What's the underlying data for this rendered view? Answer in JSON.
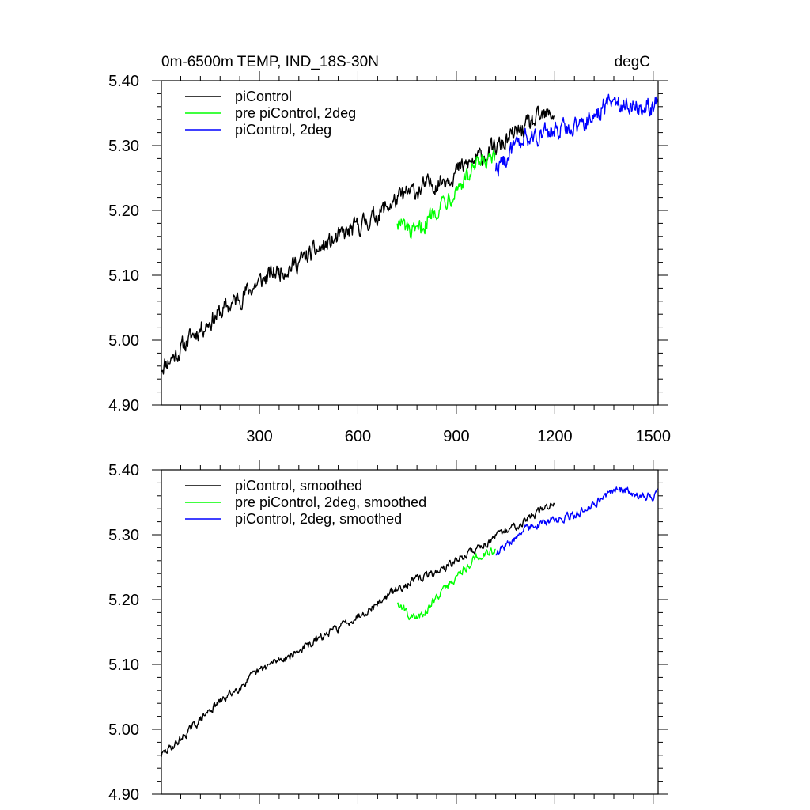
{
  "chart_data": [
    {
      "type": "line",
      "title": "0m-6500m TEMP, IND_18S-30N",
      "units": "degC",
      "xlabel": "",
      "ylabel": "",
      "xlim": [
        1,
        1515
      ],
      "ylim": [
        4.9,
        5.4
      ],
      "xticks": [
        300,
        600,
        900,
        1200,
        1500
      ],
      "xtick_labels": [
        "300",
        "600",
        "900",
        "1200",
        "1500"
      ],
      "yticks": [
        4.9,
        5.0,
        5.1,
        5.2,
        5.3,
        5.4
      ],
      "ytick_labels": [
        "4.90",
        "5.00",
        "5.10",
        "5.20",
        "5.30",
        "5.40"
      ],
      "legend_position": "top-left",
      "series": [
        {
          "name": "piControl",
          "color": "#000000",
          "x": [
            1,
            50,
            100,
            150,
            200,
            250,
            300,
            350,
            400,
            450,
            500,
            550,
            600,
            650,
            700,
            750,
            800,
            850,
            900,
            950,
            1000,
            1050,
            1100,
            1150,
            1200
          ],
          "values": [
            4.96,
            4.98,
            5.01,
            5.03,
            5.05,
            5.07,
            5.09,
            5.105,
            5.115,
            5.13,
            5.145,
            5.16,
            5.175,
            5.19,
            5.21,
            5.225,
            5.235,
            5.245,
            5.26,
            5.275,
            5.29,
            5.305,
            5.325,
            5.34,
            5.35
          ]
        },
        {
          "name": "pre piControl, 2deg",
          "color": "#00ff00",
          "x": [
            720,
            740,
            760,
            780,
            800,
            820,
            840,
            860,
            880,
            900,
            920,
            940,
            960,
            980,
            1000,
            1020
          ],
          "values": [
            5.185,
            5.175,
            5.165,
            5.16,
            5.18,
            5.19,
            5.205,
            5.215,
            5.225,
            5.235,
            5.245,
            5.255,
            5.265,
            5.27,
            5.275,
            5.275
          ]
        },
        {
          "name": "piControl, 2deg",
          "color": "#0000ff",
          "x": [
            1020,
            1060,
            1100,
            1140,
            1180,
            1220,
            1260,
            1300,
            1340,
            1380,
            1420,
            1460,
            1500,
            1515
          ],
          "values": [
            5.265,
            5.285,
            5.305,
            5.315,
            5.32,
            5.325,
            5.33,
            5.34,
            5.355,
            5.37,
            5.365,
            5.36,
            5.36,
            5.37
          ]
        }
      ]
    },
    {
      "type": "line",
      "title": "",
      "xlabel": "",
      "ylabel": "",
      "xlim": [
        1,
        1515
      ],
      "ylim": [
        4.9,
        5.4
      ],
      "xticks": [
        300,
        600,
        900,
        1200,
        1500
      ],
      "yticks": [
        4.9,
        5.0,
        5.1,
        5.2,
        5.3,
        5.4
      ],
      "ytick_labels": [
        "4.90",
        "5.00",
        "5.10",
        "5.20",
        "5.30",
        "5.40"
      ],
      "legend_position": "top-left",
      "series": [
        {
          "name": "piControl, smoothed",
          "color": "#000000",
          "x": [
            1,
            50,
            100,
            150,
            200,
            250,
            300,
            350,
            400,
            450,
            500,
            550,
            600,
            650,
            700,
            750,
            800,
            850,
            900,
            950,
            1000,
            1050,
            1100,
            1150,
            1200
          ],
          "values": [
            4.96,
            4.98,
            5.005,
            5.03,
            5.05,
            5.07,
            5.09,
            5.105,
            5.115,
            5.13,
            5.145,
            5.16,
            5.175,
            5.19,
            5.21,
            5.225,
            5.235,
            5.245,
            5.26,
            5.275,
            5.29,
            5.305,
            5.32,
            5.335,
            5.35
          ]
        },
        {
          "name": "pre piControl, 2deg, smoothed",
          "color": "#00ff00",
          "x": [
            720,
            740,
            760,
            780,
            800,
            820,
            840,
            860,
            880,
            900,
            920,
            940,
            960,
            980,
            1000,
            1020
          ],
          "values": [
            5.195,
            5.185,
            5.175,
            5.17,
            5.18,
            5.19,
            5.205,
            5.215,
            5.225,
            5.235,
            5.245,
            5.255,
            5.265,
            5.27,
            5.275,
            5.275
          ]
        },
        {
          "name": "piControl, 2deg, smoothed",
          "color": "#0000ff",
          "x": [
            1020,
            1060,
            1100,
            1140,
            1180,
            1220,
            1260,
            1300,
            1340,
            1380,
            1420,
            1460,
            1500,
            1515
          ],
          "values": [
            5.27,
            5.285,
            5.305,
            5.315,
            5.32,
            5.325,
            5.33,
            5.34,
            5.355,
            5.37,
            5.37,
            5.36,
            5.36,
            5.37
          ]
        }
      ]
    }
  ]
}
